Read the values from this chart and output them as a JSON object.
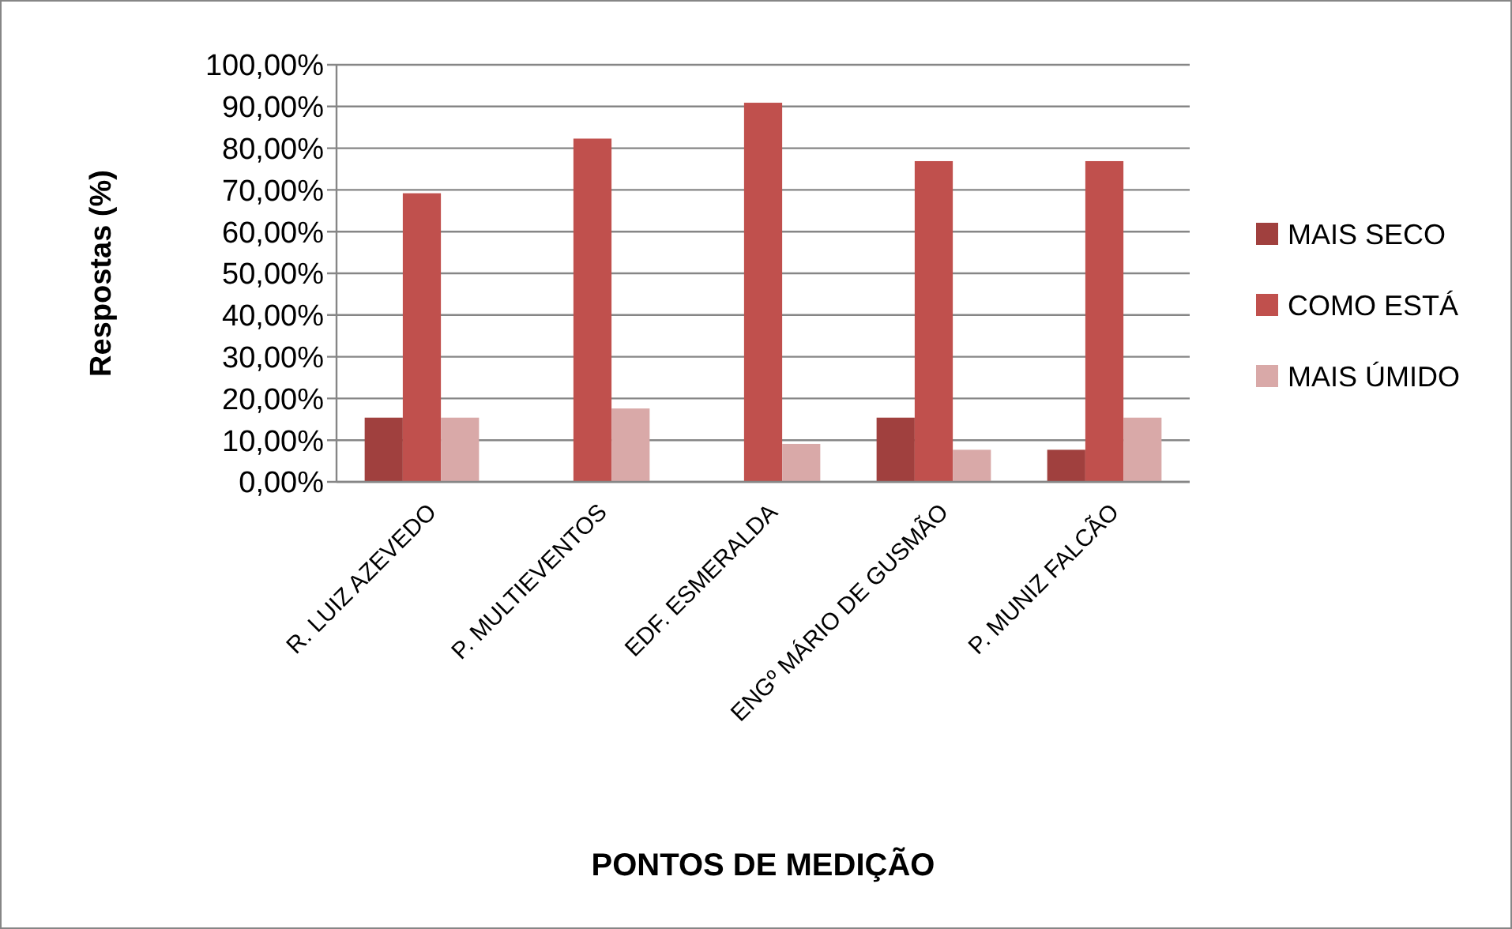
{
  "chart_data": {
    "type": "bar",
    "xlabel": "PONTOS DE MEDIÇÃO",
    "ylabel": "Respostas (%)",
    "categories": [
      "R. LUIZ AZEVEDO",
      "P. MULTIEVENTOS",
      "EDF. ESMERALDA",
      "ENGº MÁRIO DE GUSMÃO",
      "P. MUNIZ FALCÃO"
    ],
    "series": [
      {
        "name": "MAIS SECO",
        "color": "#a0403e",
        "values": [
          15.4,
          0,
          0,
          15.4,
          7.7
        ]
      },
      {
        "name": "COMO ESTÁ",
        "color": "#c0504d",
        "values": [
          69.2,
          82.3,
          90.9,
          76.9,
          76.9
        ]
      },
      {
        "name": "MAIS ÚMIDO",
        "color": "#d9a9a8",
        "values": [
          15.4,
          17.6,
          9.1,
          7.7,
          15.4
        ]
      }
    ],
    "ylim": [
      0,
      100
    ],
    "yticks": [
      {
        "value": 0,
        "label": "0,00%"
      },
      {
        "value": 10,
        "label": "10,00%"
      },
      {
        "value": 20,
        "label": "20,00%"
      },
      {
        "value": 30,
        "label": "30,00%"
      },
      {
        "value": 40,
        "label": "40,00%"
      },
      {
        "value": 50,
        "label": "50,00%"
      },
      {
        "value": 60,
        "label": "60,00%"
      },
      {
        "value": 70,
        "label": "70,00%"
      },
      {
        "value": 80,
        "label": "80,00%"
      },
      {
        "value": 90,
        "label": "90,00%"
      },
      {
        "value": 100,
        "label": "100,00%"
      }
    ],
    "grid": "y",
    "legend": "right"
  }
}
